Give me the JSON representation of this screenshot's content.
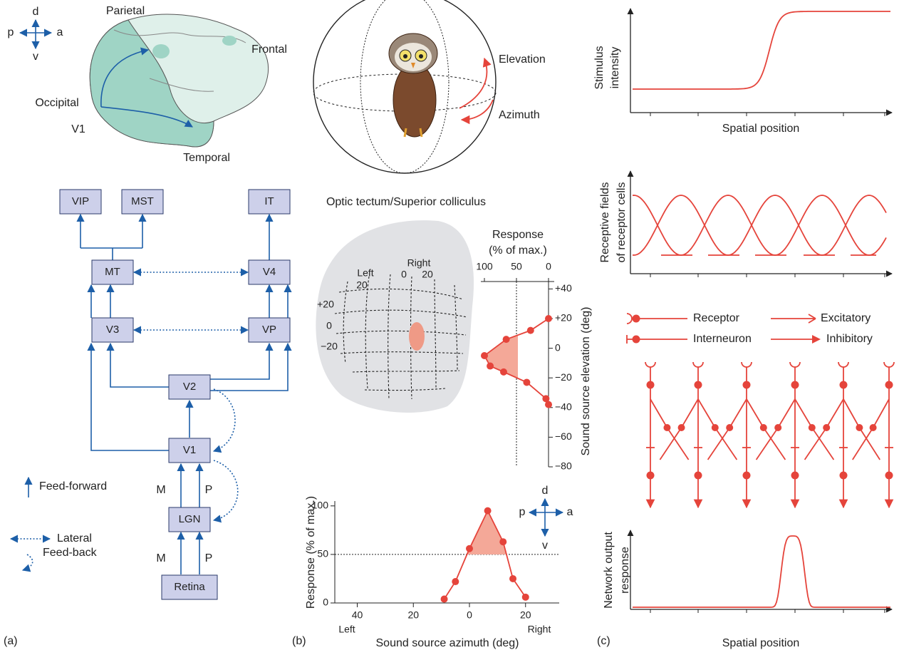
{
  "panel_a": {
    "label": "(a)",
    "directions": [
      "d",
      "p",
      "a",
      "v"
    ],
    "brain_labels": [
      "Parietal",
      "Frontal",
      "Occipital",
      "V1",
      "Temporal"
    ],
    "nodes": [
      "VIP",
      "MST",
      "IT",
      "MT",
      "V4",
      "V3",
      "VP",
      "V2",
      "V1",
      "LGN",
      "Retina"
    ],
    "pathway_labels": [
      "M",
      "P",
      "M",
      "P"
    ],
    "legend": [
      "Feed-forward",
      "Lateral",
      "Feed-back"
    ]
  },
  "panel_b": {
    "label": "(b)",
    "sphere_labels": [
      "Elevation",
      "Azimuth"
    ],
    "map_title": "Optic tectum/Superior colliculus",
    "map_labels": [
      "Left",
      "20",
      "Right",
      "0",
      "20",
      "+20",
      "0",
      "−20"
    ],
    "elevation_plot": {
      "title": "Response",
      "subtitle": "(% of max.)",
      "y_label": "Sound source elevation (deg)",
      "xlim": [
        100,
        0
      ],
      "xticks": [
        100,
        50,
        0
      ],
      "ylim": [
        -80,
        45
      ],
      "yticks": [
        {
          "value": 40,
          "label": "+40"
        },
        {
          "value": 20,
          "label": "+20"
        },
        0,
        {
          "value": -20,
          "label": "−20"
        },
        {
          "value": -40,
          "label": "−40"
        },
        {
          "value": -60,
          "label": "−60"
        },
        {
          "value": -80,
          "label": "−80"
        }
      ],
      "threshold": 50,
      "elevation": [
        20,
        12,
        6,
        -5,
        -12,
        -16,
        -23,
        -34,
        -38
      ],
      "response": [
        0,
        28,
        66,
        100,
        91,
        70,
        34,
        4,
        0
      ]
    },
    "azimuth_plot": {
      "y_label": "Response (% of max.)",
      "x_label": "Sound source azimuth (deg)",
      "left_label": "Left",
      "right_label": "Right",
      "xlim": [
        -48,
        32
      ],
      "xticks": [
        {
          "value": -40,
          "label": "40"
        },
        {
          "value": -20,
          "label": "20"
        },
        0,
        20
      ],
      "ylim": [
        0,
        105
      ],
      "yticks": [
        0,
        50,
        100
      ],
      "threshold": 50,
      "azimuth": [
        -9,
        -5,
        0,
        6.5,
        12,
        15.5,
        20
      ],
      "response": [
        4,
        22,
        56,
        95,
        63,
        25,
        6
      ]
    },
    "directions": [
      "d",
      "p",
      "a",
      "v"
    ]
  },
  "panel_c": {
    "label": "(c)",
    "stimulus_label": [
      "Stimulus",
      "intensity"
    ],
    "x_label_top": "Spatial position",
    "receptive_label": [
      "Receptive fields",
      "of receptor cells"
    ],
    "legend": [
      "Receptor",
      "Excitatory",
      "Interneuron",
      "Inhibitory"
    ],
    "output_label": [
      "Network output",
      "response"
    ],
    "x_label_bottom": "Spatial position"
  }
}
